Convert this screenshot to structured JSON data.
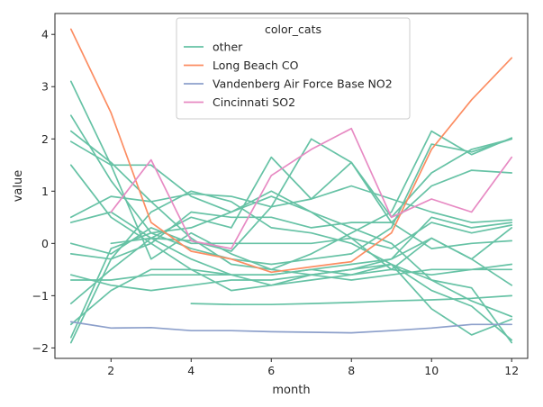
{
  "chart_data": {
    "type": "line",
    "xlabel": "month",
    "ylabel": "value",
    "xlim": [
      0.6,
      12.4
    ],
    "ylim": [
      -2.2,
      4.4
    ],
    "xticks": [
      2,
      4,
      6,
      8,
      10,
      12
    ],
    "yticks": [
      -2,
      -1,
      0,
      1,
      2,
      3,
      4
    ],
    "legend": {
      "title": "color_cats",
      "placement": "top-center",
      "entries": [
        {
          "label": "other",
          "color": "#66c2a5"
        },
        {
          "label": "Long Beach CO",
          "color": "#fc8d62"
        },
        {
          "label": "Vandenberg Air Force Base NO2",
          "color": "#8da0cb"
        },
        {
          "label": "Cincinnati SO2",
          "color": "#e78ac3"
        }
      ]
    },
    "series": [
      {
        "name": "other",
        "color": "#66c2a5",
        "x": [
          1,
          2,
          3,
          4,
          5,
          6,
          7,
          8,
          9,
          10,
          11,
          12
        ],
        "y": [
          3.1,
          1.5,
          -0.3,
          0.2,
          -0.2,
          -0.5,
          -0.6,
          -0.5,
          -0.3,
          0.1,
          -0.3,
          0.3
        ]
      },
      {
        "name": "other",
        "color": "#66c2a5",
        "x": [
          1,
          2,
          3,
          4,
          5,
          6,
          7,
          8,
          9,
          10,
          11,
          12
        ],
        "y": [
          2.45,
          1.2,
          0.2,
          -0.1,
          -0.3,
          -0.4,
          -0.3,
          -0.2,
          0.3,
          1.9,
          1.75,
          2.0
        ]
      },
      {
        "name": "other",
        "color": "#66c2a5",
        "x": [
          1,
          2,
          3,
          4,
          5,
          6,
          7,
          8,
          9,
          10,
          11,
          12
        ],
        "y": [
          2.15,
          1.55,
          0.8,
          0.1,
          -0.4,
          -0.5,
          -0.2,
          0.2,
          0.6,
          2.15,
          1.7,
          2.02
        ]
      },
      {
        "name": "other",
        "color": "#66c2a5",
        "x": [
          1,
          2,
          3,
          4,
          5,
          6,
          7,
          8,
          9,
          10,
          11,
          12
        ],
        "y": [
          1.5,
          0.5,
          0.0,
          -0.5,
          -0.6,
          -0.6,
          -0.5,
          -0.4,
          -0.3,
          0.5,
          0.3,
          0.4
        ]
      },
      {
        "name": "other",
        "color": "#66c2a5",
        "x": [
          1,
          2,
          3,
          4,
          5,
          6,
          7,
          8,
          9,
          10,
          11,
          12
        ],
        "y": [
          0.5,
          0.9,
          0.8,
          0.95,
          0.9,
          0.7,
          0.85,
          1.1,
          0.85,
          0.6,
          0.4,
          0.45
        ]
      },
      {
        "name": "other",
        "color": "#66c2a5",
        "x": [
          1,
          2,
          3,
          4,
          5,
          6,
          7,
          8,
          9,
          10,
          11,
          12
        ],
        "y": [
          0.4,
          0.6,
          0.1,
          0.5,
          0.3,
          1.65,
          0.85,
          1.55,
          0.5,
          1.35,
          1.8,
          2.0
        ]
      },
      {
        "name": "other",
        "color": "#66c2a5",
        "x": [
          1,
          2,
          3,
          4,
          5,
          6,
          7,
          8,
          9,
          10,
          11,
          12
        ],
        "y": [
          0.0,
          -0.2,
          0.3,
          0.0,
          0.0,
          0.0,
          0.0,
          0.1,
          -0.1,
          0.4,
          0.2,
          0.35
        ]
      },
      {
        "name": "other",
        "color": "#66c2a5",
        "x": [
          1,
          2,
          3,
          4,
          5,
          6,
          7,
          8,
          9,
          10,
          11,
          12
        ],
        "y": [
          -0.2,
          -0.3,
          0.0,
          0.6,
          0.5,
          0.5,
          0.3,
          0.4,
          0.4,
          -0.1,
          0.0,
          0.05
        ]
      },
      {
        "name": "other",
        "color": "#66c2a5",
        "x": [
          1,
          2,
          3,
          4,
          5,
          6,
          7,
          8,
          9,
          10,
          11,
          12
        ],
        "y": [
          -0.6,
          -0.8,
          -0.9,
          -0.8,
          -0.7,
          -0.7,
          -0.6,
          -0.7,
          -0.6,
          -0.5,
          -0.5,
          -0.4
        ]
      },
      {
        "name": "other",
        "color": "#66c2a5",
        "x": [
          1,
          2,
          3,
          4,
          5,
          6,
          7,
          8,
          9,
          10,
          11,
          12
        ],
        "y": [
          -0.7,
          -0.7,
          -0.6,
          -0.6,
          -0.6,
          -0.6,
          -0.5,
          -0.6,
          -0.5,
          -0.6,
          -0.5,
          -0.5
        ]
      },
      {
        "name": "other",
        "color": "#66c2a5",
        "x": [
          1,
          2,
          3,
          4,
          5,
          6,
          7,
          8,
          9,
          10,
          11,
          12
        ],
        "y": [
          -1.15,
          -0.5,
          0.1,
          -0.3,
          -0.6,
          -0.8,
          -0.7,
          -0.6,
          -0.4,
          -0.9,
          -1.2,
          -1.85
        ]
      },
      {
        "name": "other",
        "color": "#66c2a5",
        "x": [
          1,
          2,
          3,
          4,
          5,
          6,
          7,
          8,
          9,
          10,
          11,
          12
        ],
        "y": [
          -1.55,
          -0.9,
          -0.5,
          -0.5,
          -0.9,
          -0.8,
          -0.6,
          -0.5,
          -0.4,
          -1.25,
          -1.75,
          -1.45
        ]
      },
      {
        "name": "other",
        "color": "#66c2a5",
        "x": [
          1,
          2,
          3,
          4,
          5,
          6,
          7,
          8,
          9,
          10,
          11,
          12
        ],
        "y": [
          -1.9,
          -0.3,
          0.6,
          1.0,
          0.8,
          0.3,
          0.2,
          0.0,
          -0.4,
          -0.7,
          -0.85,
          -1.9
        ]
      },
      {
        "name": "other",
        "color": "#66c2a5",
        "x": [
          1,
          2,
          3,
          4,
          5,
          6,
          7,
          8,
          9,
          10,
          11,
          12
        ],
        "y": [
          -1.8,
          -0.1,
          0.2,
          0.3,
          0.6,
          0.9,
          0.6,
          0.3,
          0.0,
          -0.7,
          -1.1,
          -1.4
        ]
      },
      {
        "name": "other",
        "color": "#66c2a5",
        "x": [
          1,
          2,
          3,
          4,
          5,
          6,
          7,
          8,
          9,
          10,
          11,
          12
        ],
        "y": [
          1.95,
          1.5,
          1.5,
          0.9,
          0.6,
          1.0,
          0.6,
          0.1,
          -0.5,
          0.1,
          -0.3,
          -0.8
        ]
      },
      {
        "name": "other",
        "color": "#66c2a5",
        "x": [
          2,
          3,
          4,
          5,
          6,
          7,
          8,
          9,
          10,
          11,
          12
        ],
        "y": [
          0.0,
          0.1,
          0.05,
          -0.15,
          0.7,
          2.0,
          1.55,
          0.4,
          1.1,
          1.4,
          1.35
        ]
      },
      {
        "name": "other",
        "color": "#66c2a5",
        "x": [
          4,
          5,
          6,
          7,
          8,
          9,
          10,
          11,
          12
        ],
        "y": [
          -1.15,
          -1.17,
          -1.17,
          -1.15,
          -1.13,
          -1.1,
          -1.08,
          -1.05,
          -1.0
        ]
      },
      {
        "name": "Long Beach CO",
        "color": "#fc8d62",
        "x": [
          1,
          2,
          3,
          4,
          5,
          6,
          7,
          8,
          9,
          10,
          11,
          12
        ],
        "y": [
          4.1,
          2.5,
          0.4,
          -0.15,
          -0.3,
          -0.55,
          -0.45,
          -0.35,
          0.2,
          1.8,
          2.75,
          3.55
        ]
      },
      {
        "name": "Vandenberg Air Force Base NO2",
        "color": "#8da0cb",
        "x": [
          1,
          2,
          3,
          4,
          5,
          6,
          7,
          8,
          9,
          10,
          11,
          12
        ],
        "y": [
          -1.5,
          -1.62,
          -1.61,
          -1.67,
          -1.67,
          -1.69,
          -1.7,
          -1.71,
          -1.67,
          -1.62,
          -1.55,
          -1.55
        ]
      },
      {
        "name": "Cincinnati SO2",
        "color": "#e78ac3",
        "x": [
          2,
          3,
          4,
          5,
          6,
          7,
          8,
          9,
          10,
          11,
          12
        ],
        "y": [
          0.6,
          1.6,
          0.05,
          -0.1,
          1.3,
          1.8,
          2.2,
          0.5,
          0.85,
          0.6,
          1.65
        ]
      }
    ]
  }
}
